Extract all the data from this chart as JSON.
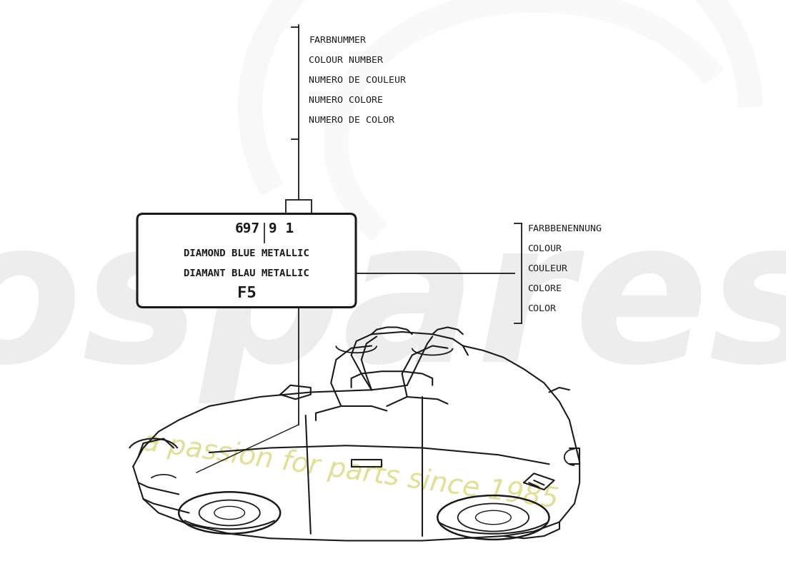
{
  "bg_color": "#ffffff",
  "color_number_label": [
    "FARBNUMMER",
    "COLOUR NUMBER",
    "NUMERO DE COULEUR",
    "NUMERO COLORE",
    "NUMERO DE COLOR"
  ],
  "color_name_label": [
    "FARBBENENNUNG",
    "COLOUR",
    "COULEUR",
    "COLORE",
    "COLOR"
  ],
  "part_number_left": "697",
  "part_number_right": "9 1",
  "color_name_line1": "DIAMOND BLUE METALLIC",
  "color_name_line2": "DIAMANT BLAU METALLIC",
  "color_code": "F5",
  "line_color": "#1a1a1a",
  "text_color": "#1a1a1a"
}
